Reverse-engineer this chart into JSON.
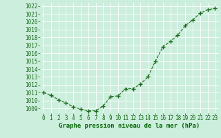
{
  "x": [
    0,
    1,
    2,
    3,
    4,
    5,
    6,
    7,
    8,
    9,
    10,
    11,
    12,
    13,
    14,
    15,
    16,
    17,
    18,
    19,
    20,
    21,
    22,
    23
  ],
  "y": [
    1011.0,
    1010.7,
    1010.1,
    1009.7,
    1009.2,
    1008.9,
    1008.7,
    1008.7,
    1009.3,
    1010.5,
    1010.6,
    1011.5,
    1011.5,
    1012.1,
    1013.0,
    1015.0,
    1016.8,
    1017.5,
    1018.3,
    1019.5,
    1020.2,
    1021.1,
    1021.5,
    1021.7
  ],
  "line_color": "#1a6b1a",
  "marker": "+",
  "marker_size": 4,
  "linewidth": 0.8,
  "linestyle": "--",
  "bg_color": "#cceedd",
  "grid_color": "#ffffff",
  "xlabel": "Graphe pression niveau de la mer (hPa)",
  "xlabel_color": "#006400",
  "xlabel_fontsize": 6.5,
  "xlabel_bold": true,
  "tick_label_fontsize": 5.5,
  "tick_label_color": "#1a6b1a",
  "ylim": [
    1008.4,
    1022.4
  ],
  "yticks": [
    1009,
    1010,
    1011,
    1012,
    1013,
    1014,
    1015,
    1016,
    1017,
    1018,
    1019,
    1020,
    1021,
    1022
  ],
  "xlim": [
    -0.5,
    23.5
  ],
  "xticks": [
    0,
    1,
    2,
    3,
    4,
    5,
    6,
    7,
    8,
    9,
    10,
    11,
    12,
    13,
    14,
    15,
    16,
    17,
    18,
    19,
    20,
    21,
    22,
    23
  ]
}
